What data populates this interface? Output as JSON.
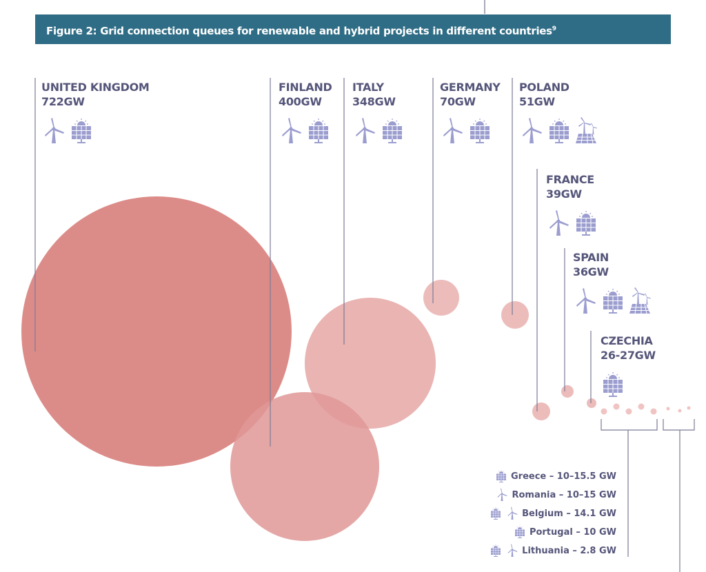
{
  "title": "Figure 2: Grid connection queues for renewable and hybrid projects in different countries",
  "title_footnote": "9",
  "icon_color": "#9b9dcf",
  "countries": [
    {
      "name": "UNITED KINGDOM",
      "capacity": "722GW",
      "icons": [
        "wind-icon",
        "solar-icon"
      ]
    },
    {
      "name": "FINLAND",
      "capacity": "400GW",
      "icons": [
        "wind-icon",
        "solar-icon"
      ]
    },
    {
      "name": "ITALY",
      "capacity": "348GW",
      "icons": [
        "wind-icon",
        "solar-icon"
      ]
    },
    {
      "name": "GERMANY",
      "capacity": "70GW",
      "icons": [
        "wind-icon",
        "solar-icon"
      ]
    },
    {
      "name": "POLAND",
      "capacity": "51GW",
      "icons": [
        "wind-icon",
        "solar-icon",
        "hybrid-icon"
      ]
    },
    {
      "name": "FRANCE",
      "capacity": "39GW",
      "icons": [
        "wind-icon",
        "solar-icon"
      ]
    },
    {
      "name": "SPAIN",
      "capacity": "36GW",
      "icons": [
        "wind-icon",
        "solar-icon",
        "hybrid-icon"
      ]
    },
    {
      "name": "CZECHIA",
      "capacity": "26-27GW",
      "icons": [
        "solar-icon"
      ]
    }
  ],
  "small_countries": [
    {
      "label": "Greece – 10–15.5 GW",
      "icons": [
        "solar-icon"
      ]
    },
    {
      "label": "Romania – 10–15 GW",
      "icons": [
        "wind-icon"
      ]
    },
    {
      "label": "Belgium – 14.1 GW",
      "icons": [
        "solar-icon",
        "wind-icon"
      ]
    },
    {
      "label": "Portugal – 10 GW",
      "icons": [
        "solar-icon"
      ]
    },
    {
      "label": "Lithuania – 2.8 GW",
      "icons": [
        "solar-icon",
        "wind-icon"
      ]
    }
  ]
}
